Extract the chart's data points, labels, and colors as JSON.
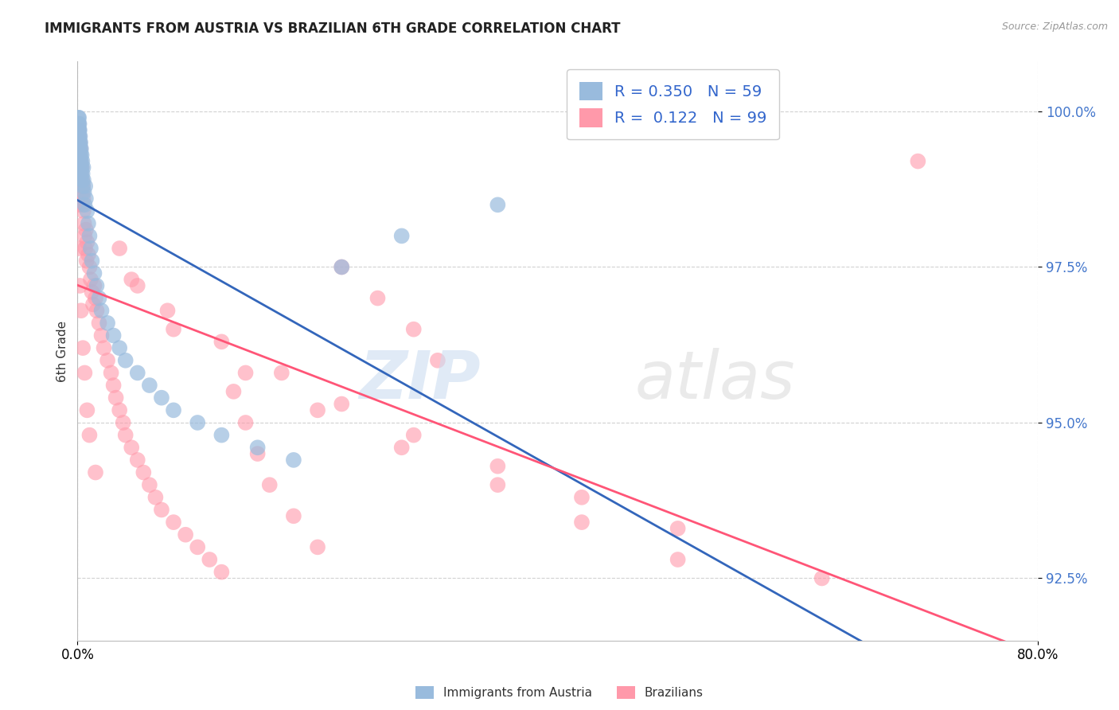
{
  "title": "IMMIGRANTS FROM AUSTRIA VS BRAZILIAN 6TH GRADE CORRELATION CHART",
  "source": "Source: ZipAtlas.com",
  "ylabel": "6th Grade",
  "legend_label1": "Immigrants from Austria",
  "legend_label2": "Brazilians",
  "R1": 0.35,
  "N1": 59,
  "R2": 0.122,
  "N2": 99,
  "color_austria": "#99BBDD",
  "color_brazil": "#FF99AA",
  "color_austria_line": "#3366BB",
  "color_brazil_line": "#FF5577",
  "xlim": [
    0.0,
    80.0
  ],
  "ylim": [
    91.5,
    100.8
  ],
  "yticks": [
    92.5,
    95.0,
    97.5,
    100.0
  ],
  "austria_x": [
    0.05,
    0.07,
    0.08,
    0.1,
    0.1,
    0.12,
    0.13,
    0.14,
    0.15,
    0.15,
    0.16,
    0.17,
    0.18,
    0.2,
    0.21,
    0.22,
    0.23,
    0.25,
    0.27,
    0.28,
    0.3,
    0.3,
    0.32,
    0.35,
    0.35,
    0.38,
    0.4,
    0.42,
    0.45,
    0.48,
    0.5,
    0.55,
    0.6,
    0.65,
    0.7,
    0.8,
    0.9,
    1.0,
    1.1,
    1.2,
    1.4,
    1.6,
    1.8,
    2.0,
    2.5,
    3.0,
    3.5,
    4.0,
    5.0,
    6.0,
    7.0,
    8.0,
    10.0,
    12.0,
    15.0,
    18.0,
    22.0,
    27.0,
    35.0
  ],
  "austria_y": [
    99.8,
    99.9,
    99.7,
    99.8,
    99.6,
    99.9,
    99.7,
    99.5,
    99.8,
    99.6,
    99.4,
    99.7,
    99.5,
    99.3,
    99.6,
    99.4,
    99.2,
    99.5,
    99.3,
    99.1,
    99.4,
    99.2,
    99.0,
    99.3,
    99.1,
    98.9,
    99.2,
    99.0,
    98.8,
    99.1,
    98.9,
    98.7,
    98.5,
    98.8,
    98.6,
    98.4,
    98.2,
    98.0,
    97.8,
    97.6,
    97.4,
    97.2,
    97.0,
    96.8,
    96.6,
    96.4,
    96.2,
    96.0,
    95.8,
    95.6,
    95.4,
    95.2,
    95.0,
    94.8,
    94.6,
    94.4,
    97.5,
    98.0,
    98.5
  ],
  "brazil_x": [
    0.05,
    0.07,
    0.08,
    0.09,
    0.1,
    0.11,
    0.12,
    0.13,
    0.14,
    0.15,
    0.16,
    0.18,
    0.2,
    0.22,
    0.25,
    0.27,
    0.3,
    0.32,
    0.35,
    0.38,
    0.4,
    0.42,
    0.45,
    0.48,
    0.5,
    0.55,
    0.6,
    0.65,
    0.7,
    0.75,
    0.8,
    0.9,
    1.0,
    1.1,
    1.2,
    1.3,
    1.4,
    1.5,
    1.6,
    1.8,
    2.0,
    2.2,
    2.5,
    2.8,
    3.0,
    3.2,
    3.5,
    3.8,
    4.0,
    4.5,
    5.0,
    5.5,
    6.0,
    6.5,
    7.0,
    8.0,
    9.0,
    10.0,
    11.0,
    12.0,
    13.0,
    14.0,
    15.0,
    16.0,
    18.0,
    20.0,
    22.0,
    25.0,
    28.0,
    30.0,
    3.5,
    4.5,
    7.5,
    12.0,
    17.0,
    22.0,
    28.0,
    35.0,
    42.0,
    50.0,
    5.0,
    8.0,
    14.0,
    20.0,
    27.0,
    35.0,
    42.0,
    50.0,
    62.0,
    70.0,
    0.08,
    0.12,
    0.2,
    0.3,
    0.45,
    0.6,
    0.8,
    1.0,
    1.5
  ],
  "brazil_y": [
    99.7,
    99.5,
    99.8,
    99.6,
    99.4,
    99.7,
    99.5,
    99.3,
    99.6,
    99.4,
    99.2,
    99.5,
    99.3,
    99.1,
    99.4,
    99.2,
    99.0,
    98.8,
    99.1,
    98.9,
    98.7,
    98.5,
    98.8,
    98.6,
    98.4,
    98.2,
    98.0,
    97.8,
    98.1,
    97.6,
    97.9,
    97.7,
    97.5,
    97.3,
    97.1,
    96.9,
    97.2,
    97.0,
    96.8,
    96.6,
    96.4,
    96.2,
    96.0,
    95.8,
    95.6,
    95.4,
    95.2,
    95.0,
    94.8,
    94.6,
    94.4,
    94.2,
    94.0,
    93.8,
    93.6,
    93.4,
    93.2,
    93.0,
    92.8,
    92.6,
    95.5,
    95.0,
    94.5,
    94.0,
    93.5,
    93.0,
    97.5,
    97.0,
    96.5,
    96.0,
    97.8,
    97.3,
    96.8,
    96.3,
    95.8,
    95.3,
    94.8,
    94.3,
    93.8,
    93.3,
    97.2,
    96.5,
    95.8,
    95.2,
    94.6,
    94.0,
    93.4,
    92.8,
    92.5,
    99.2,
    98.5,
    97.8,
    97.2,
    96.8,
    96.2,
    95.8,
    95.2,
    94.8,
    94.2
  ]
}
